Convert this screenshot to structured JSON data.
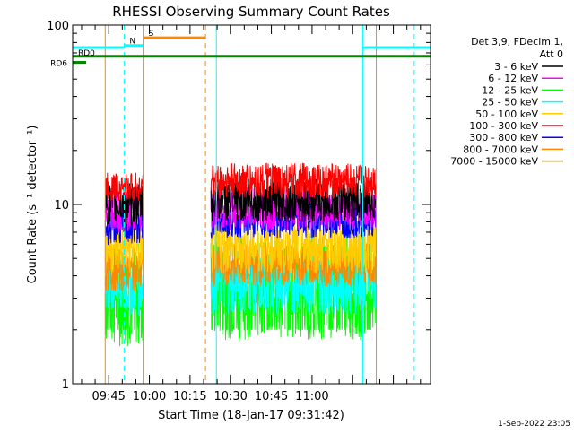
{
  "chart_data": {
    "type": "line",
    "title": "RHESSI Observing Summary Count Rates",
    "xlabel": "Start Time (18-Jan-17 09:31:42)",
    "ylabel": "Count Rate (s⁻¹ detector⁻¹)",
    "y_scale": "log",
    "ylim": [
      1,
      100
    ],
    "y_ticks": [
      "1",
      "10",
      "100"
    ],
    "x_unit": "minutes since 09:31:42",
    "xlim": [
      0,
      132
    ],
    "x_ticks": [
      {
        "label": "09:45",
        "x": 13.3
      },
      {
        "label": "10:00",
        "x": 28.3
      },
      {
        "label": "10:15",
        "x": 43.3
      },
      {
        "label": "10:30",
        "x": 58.3
      },
      {
        "label": "10:45",
        "x": 73.3
      },
      {
        "label": "11:00",
        "x": 88.3
      }
    ],
    "legend_title": [
      "Det 3,9, FDecim 1,",
      "Att 0"
    ],
    "series": [
      {
        "name": "3 - 6 keV",
        "color": "#000000",
        "segments": [
          {
            "x0": 12,
            "x1": 26,
            "level": 10.0,
            "spread": 0.12
          },
          {
            "x0": 51,
            "x1": 112,
            "level": 10.5,
            "spread": 0.12
          }
        ]
      },
      {
        "name": "6 - 12 keV",
        "color": "#ff00ff",
        "segments": [
          {
            "x0": 12,
            "x1": 26,
            "level": 9.2,
            "spread": 0.12
          },
          {
            "x0": 51,
            "x1": 112,
            "level": 9.5,
            "spread": 0.12
          }
        ]
      },
      {
        "name": "12 - 25 keV",
        "color": "#00ff00",
        "segments": [
          {
            "x0": 12,
            "x1": 26,
            "level": 3.2,
            "spread": 0.3
          },
          {
            "x0": 51,
            "x1": 112,
            "level": 3.5,
            "spread": 0.3
          }
        ]
      },
      {
        "name": "25 - 50 keV",
        "color": "#00ffff",
        "segments": [
          {
            "x0": 12,
            "x1": 26,
            "level": 3.6,
            "spread": 0.18
          },
          {
            "x0": 51,
            "x1": 112,
            "level": 3.7,
            "spread": 0.18
          }
        ]
      },
      {
        "name": "50 - 100 keV",
        "color": "#ffcc00",
        "segments": [
          {
            "x0": 12,
            "x1": 26,
            "level": 5.8,
            "spread": 0.15
          },
          {
            "x0": 51,
            "x1": 112,
            "level": 5.8,
            "spread": 0.15
          }
        ]
      },
      {
        "name": "100 - 300 keV",
        "color": "#ff0000",
        "segments": [
          {
            "x0": 12,
            "x1": 26,
            "level": 12.5,
            "spread": 0.08
          },
          {
            "x0": 51,
            "x1": 112,
            "level": 13.5,
            "spread": 0.1
          }
        ]
      },
      {
        "name": "300 - 800 keV",
        "color": "#0000ff",
        "segments": [
          {
            "x0": 12,
            "x1": 26,
            "level": 7.5,
            "spread": 0.1
          },
          {
            "x0": 51,
            "x1": 112,
            "level": 8.2,
            "spread": 0.1
          }
        ]
      },
      {
        "name": "800 - 7000 keV",
        "color": "#ff8800",
        "segments": [
          {
            "x0": 12,
            "x1": 26,
            "level": 4.3,
            "spread": 0.12
          },
          {
            "x0": 51,
            "x1": 112,
            "level": 4.6,
            "spread": 0.12
          }
        ]
      },
      {
        "name": "7000 - 15000 keV",
        "color": "#bb8800",
        "segments": []
      }
    ],
    "annotations": {
      "flags": [
        {
          "label": "",
          "color": "#00ffff",
          "y": 75,
          "x0": 0,
          "x1": 19
        },
        {
          "label": "",
          "color": "#00ffff",
          "y": 75,
          "x0": 107,
          "x1": 132
        },
        {
          "label": "S",
          "color": "#ff8800",
          "y": 85,
          "x0": 26,
          "x1": 49
        },
        {
          "label": "N",
          "color": "#00ffff",
          "y": 77,
          "x0": 19,
          "x1": 26
        },
        {
          "label": "RD0",
          "color": "#008800",
          "y": 67,
          "x0": 0,
          "x1": 132
        },
        {
          "label": "RD6",
          "color": "#008800",
          "y": 62,
          "x0": 0,
          "x1": 5
        }
      ],
      "vlines": [
        {
          "x": 12,
          "color": "#ff8800",
          "dash": false
        },
        {
          "x": 19,
          "color": "#00ffff",
          "dash": true
        },
        {
          "x": 26,
          "color": "#ff8800",
          "dash": false
        },
        {
          "x": 49,
          "color": "#ff8800",
          "dash": true
        },
        {
          "x": 53,
          "color": "#00ffff",
          "dash": false
        },
        {
          "x": 107,
          "color": "#00ffff",
          "dash": false
        },
        {
          "x": 112,
          "color": "#ff8800",
          "dash": false
        },
        {
          "x": 126,
          "color": "#00ffff",
          "dash": true
        }
      ]
    },
    "timestamp": "1-Sep-2022 23:05"
  }
}
